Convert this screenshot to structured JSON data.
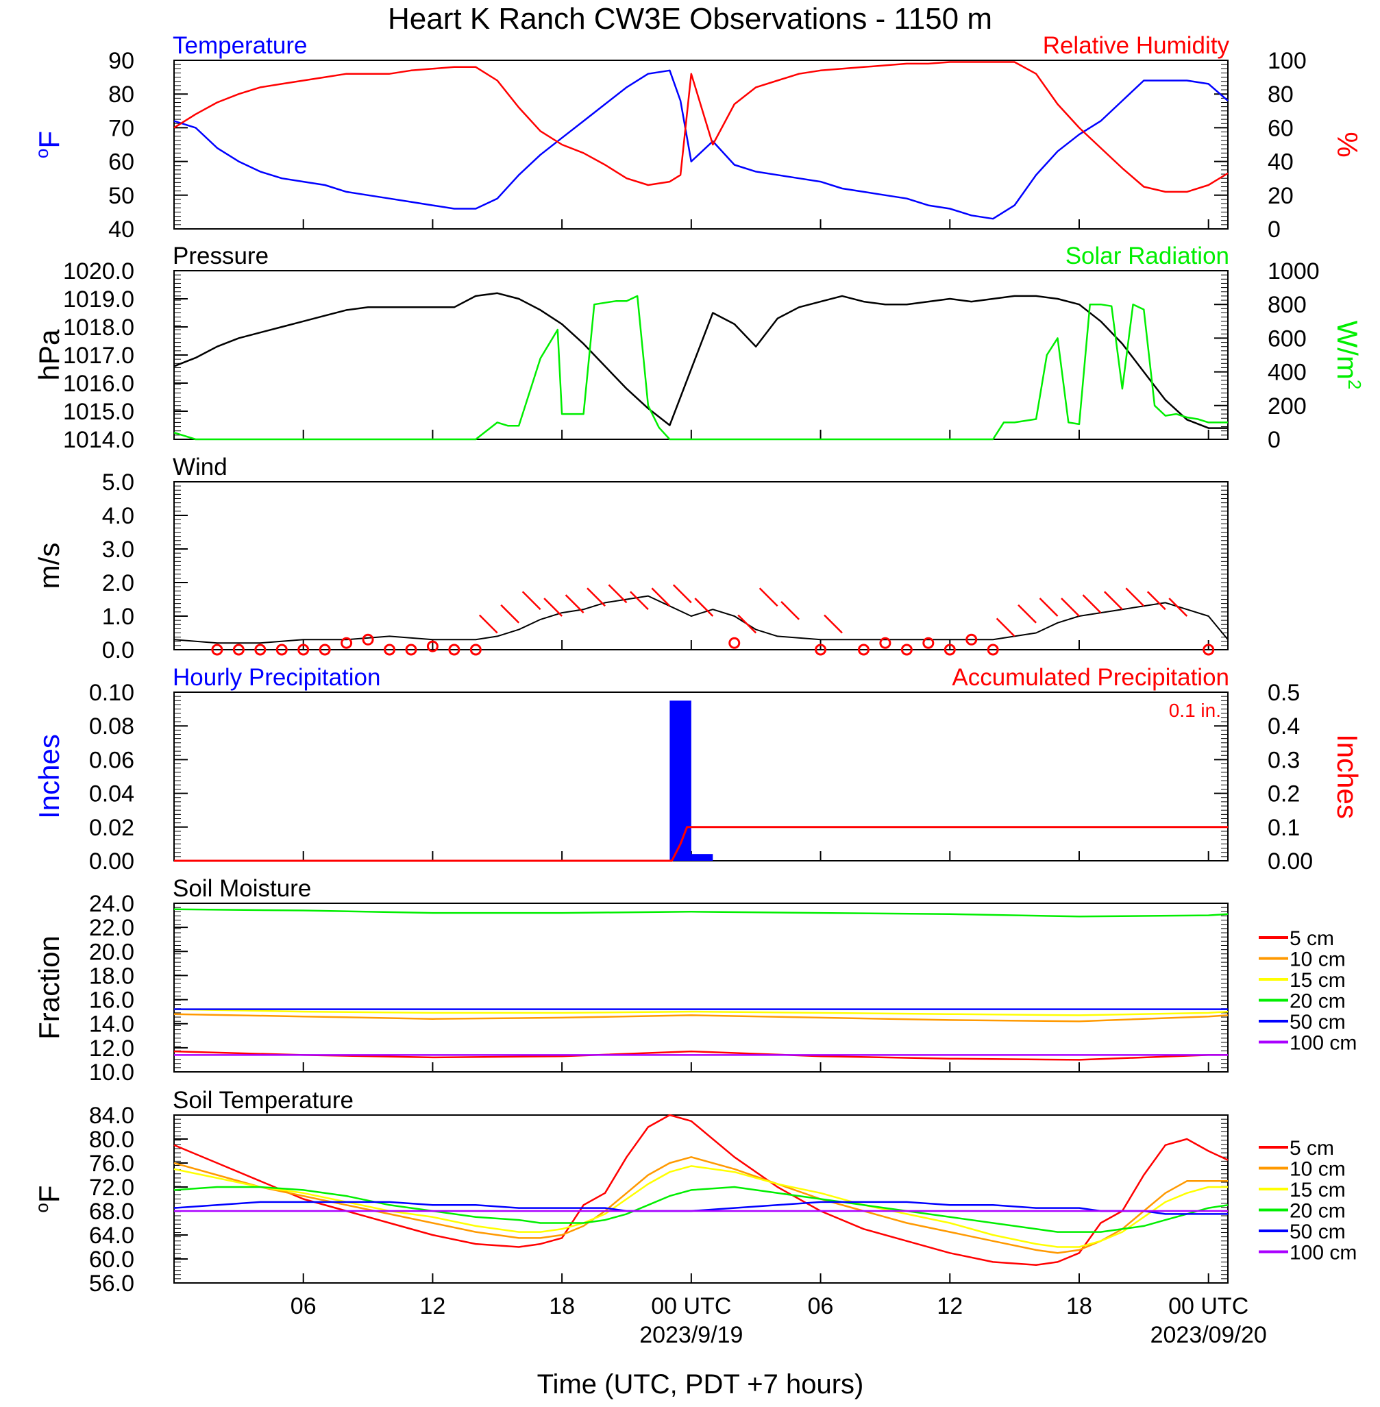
{
  "title": "Heart K Ranch CW3E Observations - 1150 m",
  "x_axis_title": "Time (UTC, PDT +7 hours)",
  "x_ticks": [
    {
      "label": "06",
      "hour": 6
    },
    {
      "label": "12",
      "hour": 12
    },
    {
      "label": "18",
      "hour": 18
    },
    {
      "label": "00 UTC",
      "hour": 24,
      "sublabel": "2023/9/19"
    },
    {
      "label": "06",
      "hour": 30
    },
    {
      "label": "12",
      "hour": 36
    },
    {
      "label": "18",
      "hour": 42
    },
    {
      "label": "00 UTC",
      "hour": 48,
      "sublabel": "2023/09/20"
    }
  ],
  "colors": {
    "blue": "#0000ff",
    "red": "#ff0000",
    "green": "#00ee00",
    "black": "#000000",
    "orange": "#ff9900",
    "yellow": "#ffff00",
    "purple": "#aa00ff"
  },
  "chart_data": [
    {
      "type": "line",
      "panel": "temperature_humidity",
      "left_title": "Temperature",
      "right_title": "Relative Humidity",
      "ylabel_left": "oF",
      "ylabel_right": "%",
      "ylim_left": [
        40,
        90
      ],
      "ylim_right": [
        0,
        100
      ],
      "yticks_left": [
        "90",
        "80",
        "70",
        "60",
        "50",
        "40"
      ],
      "yticks_right": [
        "100",
        "80",
        "60",
        "40",
        "20",
        "0"
      ],
      "x_hours": [
        0,
        1,
        2,
        3,
        4,
        5,
        6,
        7,
        8,
        9,
        10,
        11,
        12,
        13,
        14,
        15,
        16,
        17,
        18,
        19,
        20,
        21,
        22,
        23,
        23.5,
        24,
        25,
        26,
        27,
        28,
        29,
        30,
        31,
        32,
        33,
        34,
        35,
        36,
        37,
        38,
        39,
        40,
        41,
        42,
        43,
        44,
        45,
        46,
        47,
        48,
        48.9
      ],
      "series": [
        {
          "name": "Temperature",
          "axis": "left",
          "color": "blue",
          "values": [
            72,
            70,
            64,
            60,
            57,
            55,
            54,
            53,
            51,
            50,
            49,
            48,
            47,
            46,
            46,
            49,
            56,
            62,
            67,
            72,
            77,
            82,
            86,
            87,
            78,
            60,
            66,
            59,
            57,
            56,
            55,
            54,
            52,
            51,
            50,
            49,
            47,
            46,
            44,
            43,
            47,
            56,
            63,
            68,
            72,
            78,
            84,
            84,
            84,
            83,
            78
          ]
        },
        {
          "name": "Relative Humidity",
          "axis": "right",
          "color": "red",
          "values": [
            60,
            68,
            75,
            80,
            84,
            86,
            88,
            90,
            92,
            92,
            92,
            94,
            95,
            96,
            96,
            88,
            72,
            58,
            50,
            45,
            38,
            30,
            26,
            28,
            32,
            92,
            50,
            74,
            84,
            88,
            92,
            94,
            95,
            96,
            97,
            98,
            98,
            99,
            99,
            99,
            99,
            92,
            74,
            60,
            48,
            36,
            25,
            22,
            22,
            26,
            33
          ]
        }
      ]
    },
    {
      "type": "line",
      "panel": "pressure_solar",
      "left_title": "Pressure",
      "right_title": "Solar Radiation",
      "ylabel_left": "hPa",
      "ylabel_right": "W/m2",
      "ylim_left": [
        1014,
        1020
      ],
      "ylim_right": [
        0,
        1000
      ],
      "yticks_left": [
        "1020.0",
        "1019.0",
        "1018.0",
        "1017.0",
        "1016.0",
        "1015.0",
        "1014.0"
      ],
      "yticks_right": [
        "1000",
        "800",
        "600",
        "400",
        "200",
        "0"
      ],
      "series": [
        {
          "name": "Pressure",
          "axis": "left",
          "color": "black",
          "x_hours": [
            0,
            1,
            2,
            3,
            4,
            5,
            6,
            7,
            8,
            9,
            10,
            11,
            12,
            13,
            14,
            15,
            16,
            17,
            18,
            19,
            20,
            21,
            22,
            23,
            24,
            25,
            26,
            27,
            28,
            29,
            30,
            31,
            32,
            33,
            34,
            35,
            36,
            37,
            38,
            39,
            40,
            41,
            42,
            43,
            44,
            45,
            46,
            47,
            48,
            48.9
          ],
          "values": [
            1016.6,
            1016.9,
            1017.3,
            1017.6,
            1017.8,
            1018.0,
            1018.2,
            1018.4,
            1018.6,
            1018.7,
            1018.7,
            1018.7,
            1018.7,
            1018.7,
            1019.1,
            1019.2,
            1019.0,
            1018.6,
            1018.1,
            1017.4,
            1016.6,
            1015.8,
            1015.1,
            1014.5,
            1016.5,
            1018.5,
            1018.1,
            1017.3,
            1018.3,
            1018.7,
            1018.9,
            1019.1,
            1018.9,
            1018.8,
            1018.8,
            1018.9,
            1019.0,
            1018.9,
            1019.0,
            1019.1,
            1019.1,
            1019.0,
            1018.8,
            1018.2,
            1017.4,
            1016.4,
            1015.4,
            1014.7,
            1014.4,
            1014.4
          ]
        },
        {
          "name": "Solar Radiation",
          "axis": "right",
          "color": "green",
          "x_hours": [
            0,
            1,
            13,
            14,
            15,
            15.5,
            16,
            17,
            17.8,
            18,
            19,
            19.5,
            20,
            20.5,
            21,
            21.5,
            22,
            22.5,
            23,
            24,
            35,
            38,
            38.5,
            39,
            40,
            40.5,
            41,
            41.5,
            42,
            42.5,
            43,
            43.5,
            44,
            44.5,
            45,
            45.5,
            46,
            46.5,
            47,
            47.5,
            48,
            48.9
          ],
          "values": [
            40,
            0,
            0,
            0,
            100,
            80,
            80,
            480,
            650,
            150,
            150,
            800,
            810,
            820,
            820,
            850,
            200,
            70,
            0,
            0,
            0,
            0,
            100,
            100,
            120,
            500,
            600,
            100,
            90,
            800,
            800,
            790,
            300,
            800,
            770,
            200,
            140,
            150,
            130,
            120,
            100,
            100
          ]
        }
      ]
    },
    {
      "type": "line",
      "panel": "wind",
      "left_title": "Wind",
      "ylabel_left": "m/s",
      "ylim_left": [
        0,
        5
      ],
      "yticks_left": [
        "5.0",
        "4.0",
        "3.0",
        "2.0",
        "1.0",
        "0.0"
      ],
      "series": [
        {
          "name": "Wind",
          "axis": "left",
          "color": "black",
          "x_hours": [
            0,
            2,
            4,
            6,
            8,
            10,
            12,
            14,
            15,
            16,
            17,
            18,
            19,
            20,
            21,
            22,
            23,
            24,
            25,
            26,
            27,
            28,
            30,
            32,
            34,
            36,
            38,
            40,
            41,
            42,
            43,
            44,
            45,
            46,
            47,
            48,
            48.9
          ],
          "values": [
            0.3,
            0.2,
            0.2,
            0.3,
            0.3,
            0.4,
            0.3,
            0.3,
            0.4,
            0.6,
            0.9,
            1.1,
            1.2,
            1.4,
            1.5,
            1.6,
            1.3,
            1.0,
            1.2,
            1.0,
            0.6,
            0.4,
            0.3,
            0.3,
            0.3,
            0.3,
            0.3,
            0.5,
            0.8,
            1.0,
            1.1,
            1.2,
            1.3,
            1.4,
            1.2,
            1.0,
            0.3
          ]
        },
        {
          "name": "Wind barbs",
          "color": "red",
          "x_hours": [
            2,
            3,
            4,
            5,
            6,
            7,
            8,
            9,
            10,
            11,
            12,
            13,
            14,
            15,
            16,
            17,
            18,
            19,
            20,
            21,
            22,
            23,
            24,
            25,
            26,
            27,
            28,
            29,
            30,
            31,
            32,
            33,
            34,
            35,
            36,
            37,
            38,
            39,
            40,
            41,
            42,
            43,
            44,
            45,
            46,
            47,
            48
          ],
          "values": [
            0,
            0,
            0,
            0,
            0,
            0,
            0.2,
            0.3,
            0,
            0,
            0.1,
            0,
            0,
            0.5,
            0.8,
            1.2,
            1.0,
            1.1,
            1.3,
            1.4,
            1.2,
            1.3,
            1.4,
            1.0,
            0.2,
            0.5,
            1.3,
            0.9,
            0,
            0.5,
            0,
            0.2,
            0,
            0.2,
            0,
            0.3,
            0,
            0.4,
            0.8,
            1.0,
            1.0,
            1.1,
            1.2,
            1.3,
            1.2,
            1.0,
            0
          ]
        }
      ]
    },
    {
      "type": "bar",
      "panel": "precipitation",
      "left_title": "Hourly Precipitation",
      "right_title": "Accumulated Precipitation",
      "accumulated_label": "0.1 in.",
      "ylabel_left": "Inches",
      "ylabel_right": "Inches",
      "ylim_left": [
        0,
        0.1
      ],
      "ylim_right": [
        0,
        0.5
      ],
      "yticks_left": [
        "0.10",
        "0.08",
        "0.06",
        "0.04",
        "0.02",
        "0.00"
      ],
      "yticks_right": [
        "0.5",
        "0.4",
        "0.3",
        "0.2",
        "0.1",
        "0.00"
      ],
      "series": [
        {
          "name": "Hourly Precipitation",
          "axis": "left",
          "color": "blue",
          "type": "bar",
          "x_hours": [
            23,
            24
          ],
          "values": [
            0.095,
            0.004
          ]
        },
        {
          "name": "Accumulated Precipitation",
          "axis": "right",
          "color": "red",
          "type": "line",
          "x_hours": [
            0,
            23.1,
            23.5,
            23.8,
            24,
            48.9
          ],
          "values": [
            0,
            0,
            0.05,
            0.1,
            0.1,
            0.1
          ]
        }
      ]
    },
    {
      "type": "line",
      "panel": "soil_moisture",
      "left_title": "Soil Moisture",
      "ylabel_left": "Fraction",
      "ylim_left": [
        10,
        24
      ],
      "yticks_left": [
        "24.0",
        "22.0",
        "20.0",
        "18.0",
        "16.0",
        "14.0",
        "12.0",
        "10.0"
      ],
      "x_hours": [
        0,
        6,
        12,
        18,
        24,
        30,
        36,
        42,
        48,
        48.9
      ],
      "series": [
        {
          "name": "5 cm",
          "color": "red",
          "values": [
            11.7,
            11.4,
            11.2,
            11.3,
            11.7,
            11.3,
            11.1,
            11.0,
            11.4,
            11.4
          ]
        },
        {
          "name": "10 cm",
          "color": "orange",
          "values": [
            14.8,
            14.6,
            14.4,
            14.5,
            14.7,
            14.5,
            14.3,
            14.2,
            14.6,
            14.7
          ]
        },
        {
          "name": "15 cm",
          "color": "yellow",
          "values": [
            15.2,
            15.0,
            14.9,
            14.9,
            15.0,
            14.9,
            14.8,
            14.7,
            14.9,
            15.0
          ]
        },
        {
          "name": "20 cm",
          "color": "green",
          "values": [
            23.5,
            23.4,
            23.2,
            23.2,
            23.3,
            23.2,
            23.1,
            22.9,
            23.0,
            23.1
          ]
        },
        {
          "name": "50 cm",
          "color": "blue",
          "values": [
            15.2,
            15.2,
            15.2,
            15.2,
            15.2,
            15.2,
            15.2,
            15.2,
            15.2,
            15.2
          ]
        },
        {
          "name": "100 cm",
          "color": "purple",
          "values": [
            11.4,
            11.4,
            11.4,
            11.4,
            11.4,
            11.4,
            11.4,
            11.4,
            11.4,
            11.4
          ]
        }
      ]
    },
    {
      "type": "line",
      "panel": "soil_temperature",
      "left_title": "Soil Temperature",
      "ylabel_left": "oF",
      "ylim_left": [
        56,
        84
      ],
      "yticks_left": [
        "84.0",
        "80.0",
        "76.0",
        "72.0",
        "68.0",
        "64.0",
        "60.0",
        "56.0"
      ],
      "x_hours": [
        0,
        2,
        4,
        6,
        8,
        10,
        12,
        14,
        16,
        17,
        18,
        19,
        20,
        21,
        22,
        23,
        24,
        26,
        28,
        30,
        32,
        34,
        36,
        38,
        40,
        41,
        42,
        43,
        44,
        45,
        46,
        47,
        48,
        48.9
      ],
      "series": [
        {
          "name": "5 cm",
          "color": "red",
          "values": [
            79,
            76,
            73,
            70,
            68,
            66,
            64,
            62.5,
            62,
            62.5,
            63.5,
            69,
            71,
            77,
            82,
            84,
            83,
            77,
            72,
            68,
            65,
            63,
            61,
            59.5,
            59,
            59.5,
            61,
            66,
            68,
            74,
            79,
            80,
            78,
            76.5
          ]
        },
        {
          "name": "10 cm",
          "color": "orange",
          "values": [
            76,
            74,
            72,
            70.5,
            69,
            67.5,
            66,
            64.5,
            63.5,
            63.5,
            64,
            65.5,
            68,
            71,
            74,
            76,
            77,
            75,
            72.5,
            70,
            68,
            66,
            64.5,
            63,
            61.5,
            61,
            61.5,
            63,
            65,
            68,
            71,
            73,
            73,
            73
          ]
        },
        {
          "name": "15 cm",
          "color": "yellow",
          "values": [
            75,
            73.5,
            72,
            71,
            69.5,
            68,
            67,
            65.5,
            64.5,
            64.5,
            65,
            66,
            67.5,
            70,
            72.5,
            74.5,
            75.5,
            74.5,
            72.5,
            71,
            69,
            67.5,
            66,
            64,
            62.5,
            62,
            62,
            63,
            64.5,
            67,
            69.5,
            71,
            72,
            72
          ]
        },
        {
          "name": "20 cm",
          "color": "green",
          "values": [
            71.5,
            72,
            72,
            71.5,
            70.5,
            69,
            68,
            67,
            66.5,
            66,
            66,
            66,
            66.5,
            67.5,
            69,
            70.5,
            71.5,
            72,
            71,
            70,
            69,
            68,
            67,
            66,
            65,
            64.5,
            64.5,
            64.5,
            65,
            65.5,
            66.5,
            67.5,
            68.5,
            69
          ]
        },
        {
          "name": "50 cm",
          "color": "blue",
          "values": [
            68.5,
            69,
            69.5,
            69.5,
            69.5,
            69.5,
            69,
            69,
            68.5,
            68.5,
            68.5,
            68.5,
            68.5,
            68,
            68,
            68,
            68,
            68.5,
            69,
            69.5,
            69.5,
            69.5,
            69,
            69,
            68.5,
            68.5,
            68.5,
            68,
            68,
            68,
            67.5,
            67.5,
            67.5,
            67.5
          ]
        },
        {
          "name": "100 cm",
          "color": "purple",
          "values": [
            68,
            68,
            68,
            68,
            68,
            68,
            68,
            68,
            68,
            68,
            68,
            68,
            68,
            68,
            68,
            68,
            68,
            68,
            68,
            68,
            68,
            68,
            68,
            68,
            68,
            68,
            68,
            68,
            68,
            68,
            68,
            68,
            68,
            68
          ]
        }
      ]
    }
  ]
}
